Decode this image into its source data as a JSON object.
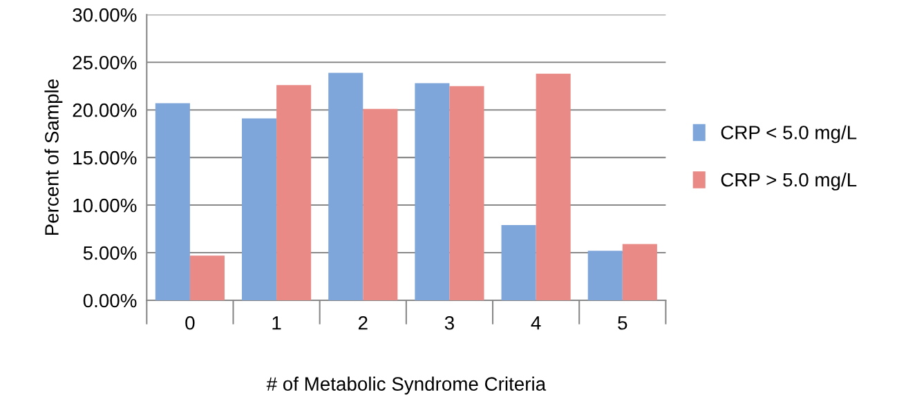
{
  "chart_data": {
    "type": "bar",
    "xlabel": "# of Metabolic Syndrome Criteria",
    "ylabel": "Percent of Sample",
    "categories": [
      "0",
      "1",
      "2",
      "3",
      "4",
      "5"
    ],
    "series": [
      {
        "name": "CRP < 5.0 mg/L",
        "color": "#7ea6da",
        "values": [
          20.7,
          19.1,
          23.9,
          22.8,
          7.9,
          5.2
        ]
      },
      {
        "name": "CRP > 5.0 mg/L",
        "color": "#e98a86",
        "values": [
          4.7,
          22.6,
          20.1,
          22.5,
          23.8,
          5.9
        ]
      }
    ],
    "ylim": [
      0,
      30
    ],
    "yticks": [
      {
        "value": 0,
        "label": "0.00%"
      },
      {
        "value": 5,
        "label": "5.00%"
      },
      {
        "value": 10,
        "label": "10.00%"
      },
      {
        "value": 15,
        "label": "15.00%"
      },
      {
        "value": 20,
        "label": "20.00%"
      },
      {
        "value": 25,
        "label": "25.00%"
      },
      {
        "value": 30,
        "label": "30.00%"
      }
    ],
    "grid": "y",
    "legend": "right"
  }
}
